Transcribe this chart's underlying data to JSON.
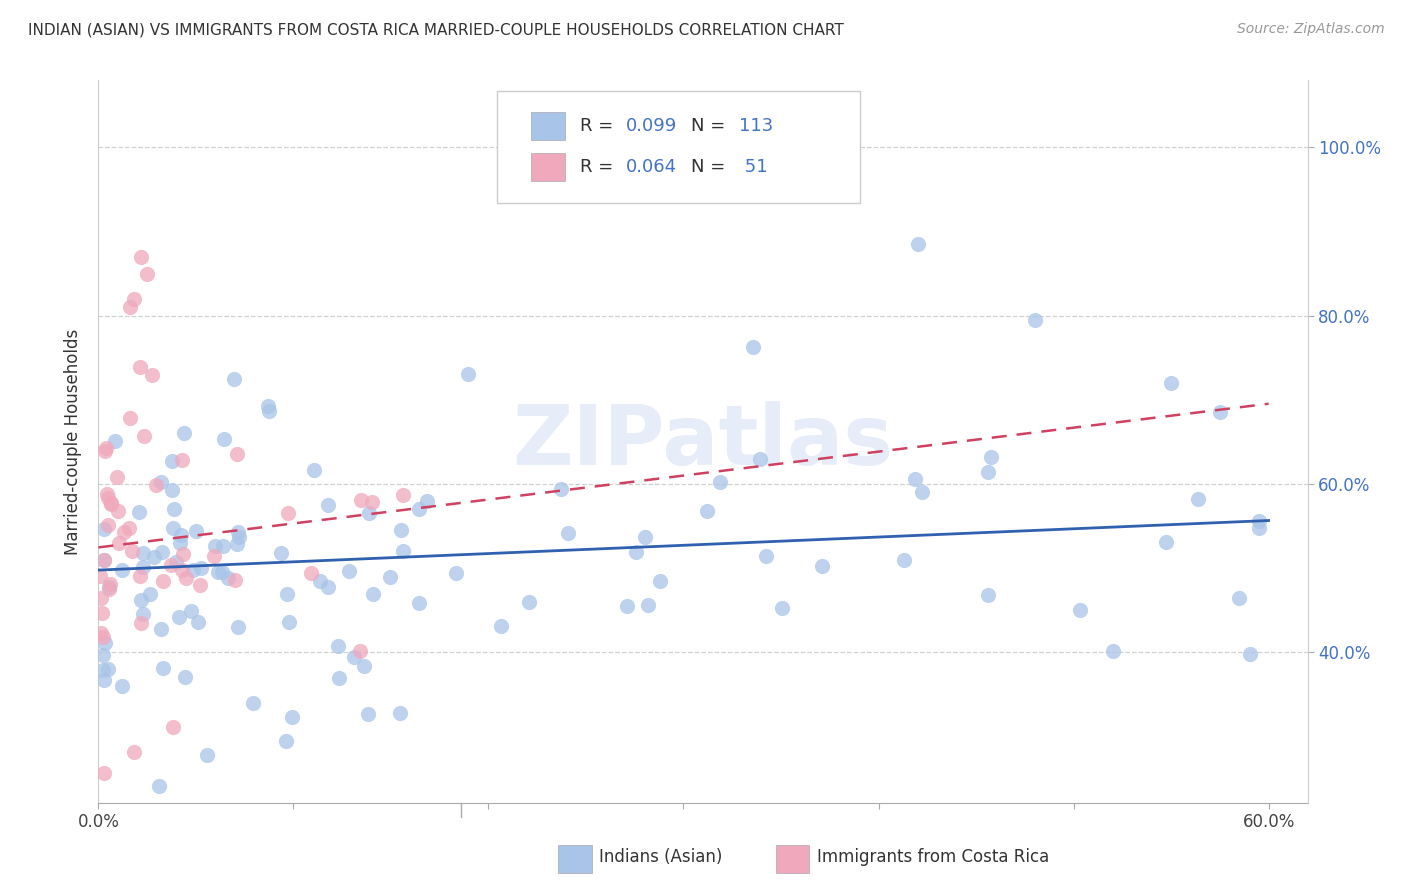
{
  "title": "INDIAN (ASIAN) VS IMMIGRANTS FROM COSTA RICA MARRIED-COUPLE HOUSEHOLDS CORRELATION CHART",
  "source": "Source: ZipAtlas.com",
  "ylabel": "Married-couple Households",
  "xlim": [
    0.0,
    0.62
  ],
  "ylim": [
    0.22,
    1.08
  ],
  "xtick_positions": [
    0.0,
    0.1,
    0.2,
    0.3,
    0.4,
    0.5,
    0.6
  ],
  "xtick_labels": [
    "0.0%",
    "",
    "",
    "",
    "",
    "",
    "60.0%"
  ],
  "ytick_positions": [
    0.4,
    0.6,
    0.8,
    1.0
  ],
  "ytick_labels_right": [
    "40.0%",
    "60.0%",
    "80.0%",
    "100.0%"
  ],
  "background_color": "#ffffff",
  "grid_color": "#d0d0d0",
  "watermark": "ZIPatlas",
  "color_blue": "#a8c4e8",
  "color_pink": "#f0a8bc",
  "trendline_blue_color": "#3060b0",
  "trendline_pink_color": "#d04060",
  "legend_label1": "Indians (Asian)",
  "legend_label2": "Immigrants from Costa Rica",
  "blue_trendline_x": [
    0.0,
    0.6
  ],
  "blue_trendline_y": [
    0.497,
    0.556
  ],
  "pink_trendline_x": [
    0.0,
    0.6
  ],
  "pink_trendline_y": [
    0.524,
    0.695
  ]
}
